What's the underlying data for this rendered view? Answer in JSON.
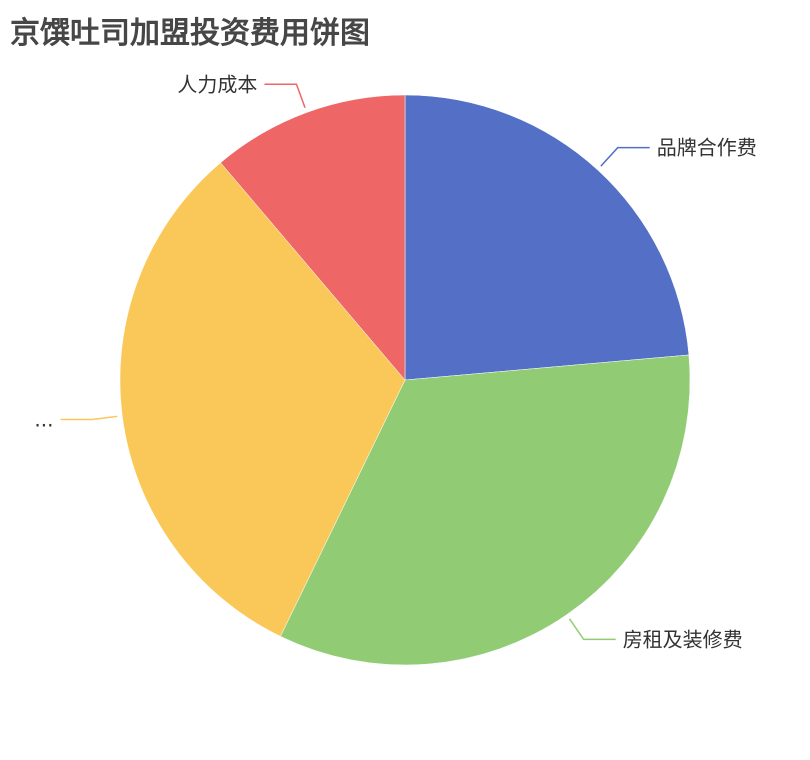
{
  "chart_data": {
    "type": "pie",
    "title": "京馔吐司加盟投资费用饼图",
    "start_angle": "12 o'clock, clockwise",
    "slices": [
      {
        "name": "品牌合作费",
        "value": 23.6,
        "color": "#5470c6",
        "label": "品牌合作费"
      },
      {
        "name": "房租及装修费",
        "value": 33.6,
        "color": "#91cc75",
        "label": "房租及装修费"
      },
      {
        "name": "",
        "value": 31.6,
        "color": "#fac858",
        "label": "..."
      },
      {
        "name": "人力成本",
        "value": 11.2,
        "color": "#ee6666",
        "label": "人力成本"
      }
    ],
    "legend": "none"
  }
}
